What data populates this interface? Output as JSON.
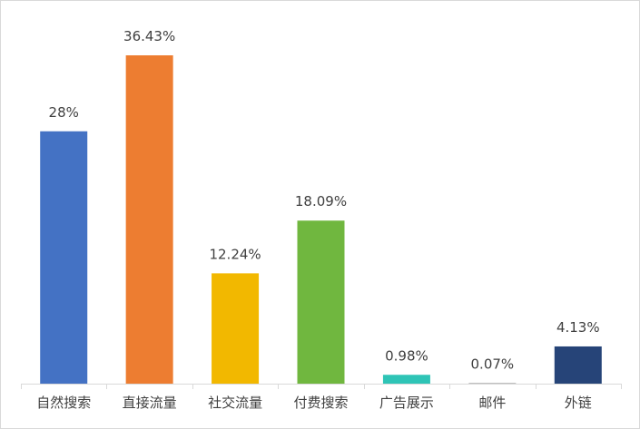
{
  "chart_data": {
    "type": "bar",
    "title": "",
    "xlabel": "",
    "ylabel": "",
    "ylim": [
      0,
      40
    ],
    "grid": false,
    "legend": "none",
    "categories": [
      "自然搜索",
      "直接流量",
      "社交流量",
      "付费搜索",
      "广告展示",
      "邮件",
      "外链"
    ],
    "values": [
      28,
      36.43,
      12.24,
      18.09,
      0.98,
      0.07,
      4.13
    ],
    "data_labels": [
      "28%",
      "36.43%",
      "12.24%",
      "18.09%",
      "0.98%",
      "0.07%",
      "4.13%"
    ],
    "colors": [
      "#4472c4",
      "#ed7d31",
      "#f2b800",
      "#70b73f",
      "#2ec4b6",
      "#a5a5a5",
      "#264478"
    ]
  }
}
